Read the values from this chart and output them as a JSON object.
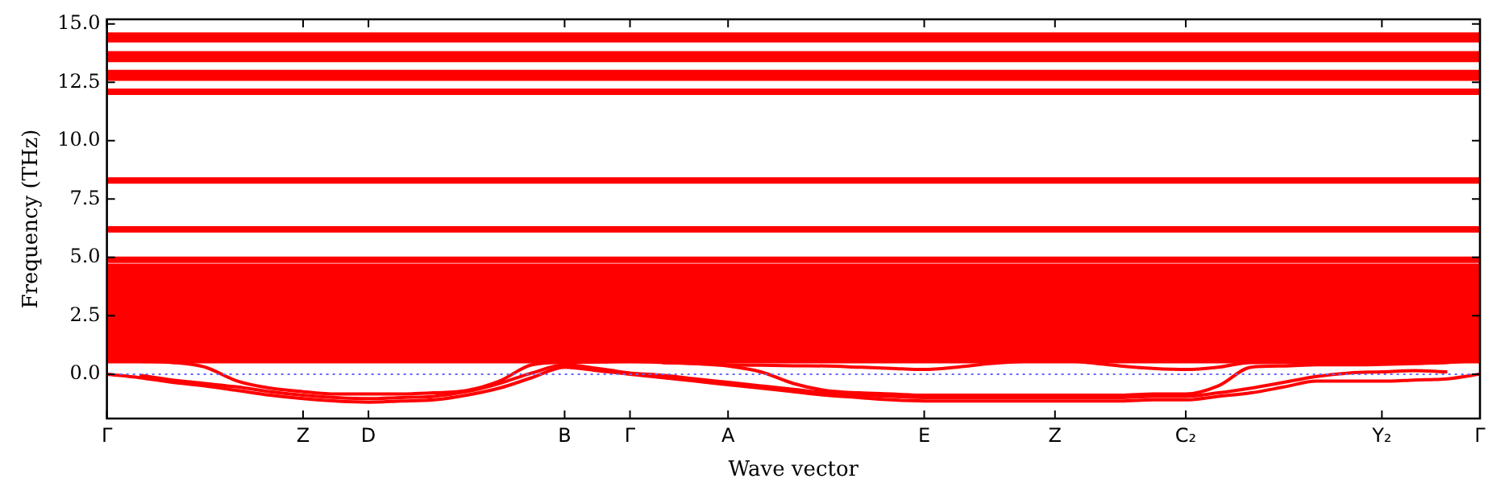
{
  "chart_data": {
    "type": "line",
    "xlabel": "Wave vector",
    "ylabel": "Frequency (THz)",
    "categories": [
      "Γ",
      null,
      null,
      null,
      null,
      null,
      "Z",
      null,
      "D",
      null,
      null,
      null,
      null,
      null,
      "B",
      null,
      "Γ",
      null,
      null,
      "A",
      null,
      null,
      null,
      null,
      null,
      "E",
      null,
      null,
      null,
      "Z",
      null,
      null,
      null,
      "C₂",
      null,
      null,
      null,
      null,
      null,
      "Y₂",
      null,
      null,
      "Γ"
    ],
    "ylim": [
      -1.9,
      15.2
    ],
    "yticks": [
      {
        "value": 0,
        "label": "0.0"
      },
      {
        "value": 2.5,
        "label": "2.5"
      },
      {
        "value": 5,
        "label": "5.0"
      },
      {
        "value": 7.5,
        "label": "7.5"
      },
      {
        "value": 10,
        "label": "10.0"
      },
      {
        "value": 12.5,
        "label": "12.5"
      },
      {
        "value": 15,
        "label": "15.0"
      }
    ],
    "grid": false,
    "legend": false,
    "marker": "none",
    "line_style": "solid",
    "ref_lines": [
      {
        "axis": "y",
        "value": 0,
        "color": "#6666ff",
        "line_style": "dotted"
      }
    ],
    "series": [
      {
        "color": "#ff0000",
        "values": [
          14.5,
          14.5,
          14.5,
          14.5,
          14.5,
          14.5,
          14.5,
          14.5,
          14.5,
          14.5,
          14.5,
          14.5,
          14.5,
          14.5,
          14.5,
          14.5,
          14.5,
          14.5,
          14.5,
          14.5,
          14.5,
          14.5,
          14.5,
          14.5,
          14.5,
          14.5,
          14.5,
          14.5,
          14.5,
          14.5,
          14.5,
          14.5,
          14.5,
          14.5,
          14.5,
          14.5,
          14.5,
          14.5,
          14.5,
          14.5,
          14.5,
          14.5,
          14.5
        ]
      },
      {
        "color": "#ff0000",
        "values": [
          14.35,
          14.35,
          14.35,
          14.35,
          14.35,
          14.35,
          14.35,
          14.35,
          14.35,
          14.35,
          14.35,
          14.35,
          14.35,
          14.35,
          14.35,
          14.35,
          14.35,
          14.35,
          14.35,
          14.35,
          14.35,
          14.35,
          14.35,
          14.35,
          14.35,
          14.35,
          14.35,
          14.35,
          14.35,
          14.35,
          14.35,
          14.35,
          14.35,
          14.35,
          14.35,
          14.35,
          14.35,
          14.35,
          14.35,
          14.35,
          14.35,
          14.35,
          14.35
        ]
      },
      {
        "color": "#ff0000",
        "values": [
          13.7,
          13.7,
          13.7,
          13.7,
          13.7,
          13.7,
          13.7,
          13.7,
          13.7,
          13.7,
          13.7,
          13.7,
          13.7,
          13.7,
          13.7,
          13.7,
          13.7,
          13.7,
          13.7,
          13.7,
          13.7,
          13.7,
          13.7,
          13.7,
          13.7,
          13.7,
          13.7,
          13.7,
          13.7,
          13.7,
          13.7,
          13.7,
          13.7,
          13.7,
          13.7,
          13.7,
          13.7,
          13.7,
          13.7,
          13.7,
          13.7,
          13.7,
          13.7
        ]
      },
      {
        "color": "#ff0000",
        "values": [
          13.5,
          13.5,
          13.5,
          13.5,
          13.5,
          13.5,
          13.5,
          13.5,
          13.5,
          13.5,
          13.5,
          13.5,
          13.5,
          13.5,
          13.5,
          13.5,
          13.5,
          13.5,
          13.5,
          13.5,
          13.5,
          13.5,
          13.5,
          13.5,
          13.5,
          13.5,
          13.5,
          13.5,
          13.5,
          13.5,
          13.5,
          13.5,
          13.5,
          13.5,
          13.5,
          13.5,
          13.5,
          13.5,
          13.5,
          13.5,
          13.5,
          13.5,
          13.5
        ]
      },
      {
        "color": "#ff0000",
        "values": [
          12.9,
          12.9,
          12.9,
          12.9,
          12.9,
          12.9,
          12.9,
          12.9,
          12.9,
          12.9,
          12.9,
          12.9,
          12.9,
          12.9,
          12.9,
          12.9,
          12.9,
          12.9,
          12.9,
          12.9,
          12.9,
          12.9,
          12.9,
          12.9,
          12.9,
          12.9,
          12.9,
          12.9,
          12.9,
          12.9,
          12.9,
          12.9,
          12.9,
          12.9,
          12.9,
          12.9,
          12.9,
          12.9,
          12.9,
          12.9,
          12.9,
          12.9,
          12.9
        ]
      },
      {
        "color": "#ff0000",
        "values": [
          12.7,
          12.7,
          12.7,
          12.7,
          12.7,
          12.7,
          12.7,
          12.7,
          12.7,
          12.7,
          12.7,
          12.7,
          12.7,
          12.7,
          12.7,
          12.7,
          12.7,
          12.7,
          12.7,
          12.7,
          12.7,
          12.7,
          12.7,
          12.7,
          12.7,
          12.7,
          12.7,
          12.7,
          12.7,
          12.7,
          12.7,
          12.7,
          12.7,
          12.7,
          12.7,
          12.7,
          12.7,
          12.7,
          12.7,
          12.7,
          12.7,
          12.7,
          12.7
        ]
      },
      {
        "color": "#ff0000",
        "values": [
          12.1,
          12.1,
          12.1,
          12.1,
          12.1,
          12.1,
          12.1,
          12.1,
          12.1,
          12.1,
          12.1,
          12.1,
          12.1,
          12.1,
          12.1,
          12.1,
          12.1,
          12.1,
          12.1,
          12.1,
          12.1,
          12.1,
          12.1,
          12.1,
          12.1,
          12.1,
          12.1,
          12.1,
          12.1,
          12.1,
          12.1,
          12.1,
          12.1,
          12.1,
          12.1,
          12.1,
          12.1,
          12.1,
          12.1,
          12.1,
          12.1,
          12.1,
          12.1
        ]
      },
      {
        "color": "#ff0000",
        "values": [
          8.3,
          8.3,
          8.3,
          8.3,
          8.3,
          8.3,
          8.3,
          8.3,
          8.3,
          8.3,
          8.3,
          8.3,
          8.3,
          8.3,
          8.3,
          8.3,
          8.3,
          8.3,
          8.3,
          8.3,
          8.3,
          8.3,
          8.3,
          8.3,
          8.3,
          8.3,
          8.3,
          8.3,
          8.3,
          8.3,
          8.3,
          8.3,
          8.3,
          8.3,
          8.3,
          8.3,
          8.3,
          8.3,
          8.3,
          8.3,
          8.3,
          8.3,
          8.3
        ]
      },
      {
        "color": "#ff0000",
        "values": [
          6.2,
          6.2,
          6.2,
          6.2,
          6.2,
          6.2,
          6.2,
          6.2,
          6.2,
          6.2,
          6.2,
          6.2,
          6.2,
          6.2,
          6.2,
          6.2,
          6.2,
          6.2,
          6.2,
          6.2,
          6.2,
          6.2,
          6.2,
          6.2,
          6.2,
          6.2,
          6.2,
          6.2,
          6.2,
          6.2,
          6.2,
          6.2,
          6.2,
          6.2,
          6.2,
          6.2,
          6.2,
          6.2,
          6.2,
          6.2,
          6.2,
          6.2,
          6.2
        ]
      },
      {
        "color": "#ff0000",
        "values": [
          4.9,
          4.9,
          4.9,
          4.9,
          4.9,
          4.9,
          4.9,
          4.9,
          4.9,
          4.9,
          4.9,
          4.9,
          4.9,
          4.9,
          4.9,
          4.9,
          4.9,
          4.9,
          4.9,
          4.9,
          4.9,
          4.9,
          4.9,
          4.9,
          4.9,
          4.9,
          4.9,
          4.9,
          4.9,
          4.9,
          4.9,
          4.9,
          4.9,
          4.9,
          4.9,
          4.9,
          4.9,
          4.9,
          4.9,
          4.9,
          4.9,
          4.9,
          4.9
        ]
      },
      {
        "color": "#ff0000",
        "values": [
          4.6,
          4.6,
          4.6,
          4.6,
          4.6,
          4.6,
          4.6,
          4.6,
          4.6,
          4.6,
          4.6,
          4.6,
          4.6,
          4.6,
          4.6,
          4.6,
          4.6,
          4.6,
          4.6,
          4.6,
          4.6,
          4.6,
          4.6,
          4.6,
          4.6,
          4.6,
          4.6,
          4.6,
          4.6,
          4.6,
          4.6,
          4.6,
          4.6,
          4.6,
          4.6,
          4.6,
          4.6,
          4.6,
          4.6,
          4.6,
          4.6,
          4.6,
          4.6
        ]
      },
      {
        "color": "#ff0000",
        "values": [
          4.35,
          4.35,
          4.35,
          4.35,
          4.35,
          4.35,
          4.35,
          4.35,
          4.35,
          4.35,
          4.35,
          4.35,
          4.35,
          4.35,
          4.35,
          4.35,
          4.35,
          4.35,
          4.35,
          4.35,
          4.35,
          4.35,
          4.35,
          4.35,
          4.35,
          4.35,
          4.35,
          4.35,
          4.35,
          4.35,
          4.35,
          4.35,
          4.35,
          4.35,
          4.35,
          4.35,
          4.35,
          4.35,
          4.35,
          4.35,
          4.35,
          4.35,
          4.35
        ]
      },
      {
        "color": "#ff0000",
        "values": [
          4.1,
          4.1,
          4.1,
          4.1,
          4.1,
          4.1,
          4.1,
          4.1,
          4.1,
          4.1,
          4.1,
          4.1,
          4.1,
          4.1,
          4.1,
          4.1,
          4.1,
          4.1,
          4.1,
          4.1,
          4.1,
          4.1,
          4.1,
          4.1,
          4.1,
          4.1,
          4.1,
          4.1,
          4.1,
          4.1,
          4.1,
          4.1,
          4.1,
          4.1,
          4.1,
          4.1,
          4.1,
          4.1,
          4.1,
          4.1,
          4.1,
          4.1,
          4.1
        ]
      },
      {
        "color": "#ff0000",
        "values": [
          3.85,
          3.85,
          3.85,
          3.85,
          3.85,
          3.85,
          3.85,
          3.85,
          3.85,
          3.85,
          3.85,
          3.85,
          3.85,
          3.85,
          3.85,
          3.85,
          3.85,
          3.85,
          3.85,
          3.85,
          3.85,
          3.85,
          3.85,
          3.85,
          3.85,
          3.85,
          3.85,
          3.85,
          3.85,
          3.85,
          3.85,
          3.85,
          3.85,
          3.85,
          3.85,
          3.85,
          3.85,
          3.85,
          3.85,
          3.85,
          3.85,
          3.85,
          3.85
        ]
      },
      {
        "color": "#ff0000",
        "values": [
          3.6,
          3.6,
          3.6,
          3.6,
          3.6,
          3.6,
          3.6,
          3.6,
          3.6,
          3.6,
          3.6,
          3.6,
          3.6,
          3.6,
          3.6,
          3.6,
          3.6,
          3.6,
          3.6,
          3.6,
          3.6,
          3.6,
          3.6,
          3.6,
          3.6,
          3.6,
          3.6,
          3.6,
          3.6,
          3.6,
          3.6,
          3.6,
          3.6,
          3.6,
          3.6,
          3.6,
          3.6,
          3.6,
          3.6,
          3.6,
          3.6,
          3.6,
          3.6
        ]
      },
      {
        "color": "#ff0000",
        "values": [
          3.35,
          3.35,
          3.35,
          3.35,
          3.35,
          3.35,
          3.35,
          3.35,
          3.35,
          3.35,
          3.35,
          3.35,
          3.35,
          3.35,
          3.35,
          3.35,
          3.35,
          3.35,
          3.35,
          3.35,
          3.35,
          3.35,
          3.35,
          3.35,
          3.35,
          3.35,
          3.35,
          3.35,
          3.35,
          3.35,
          3.35,
          3.35,
          3.35,
          3.35,
          3.35,
          3.35,
          3.35,
          3.35,
          3.35,
          3.35,
          3.35,
          3.35,
          3.35
        ]
      },
      {
        "color": "#ff0000",
        "values": [
          3.1,
          3.1,
          3.1,
          3.1,
          3.1,
          3.1,
          3.1,
          3.1,
          3.1,
          3.1,
          3.1,
          3.1,
          3.1,
          3.1,
          3.1,
          3.1,
          3.1,
          3.1,
          3.1,
          3.1,
          3.1,
          3.1,
          3.1,
          3.1,
          3.1,
          3.1,
          3.1,
          3.1,
          3.1,
          3.1,
          3.1,
          3.1,
          3.1,
          3.1,
          3.1,
          3.1,
          3.1,
          3.1,
          3.1,
          3.1,
          3.1,
          3.1,
          3.1
        ]
      },
      {
        "color": "#ff0000",
        "values": [
          2.85,
          2.85,
          2.85,
          2.85,
          2.85,
          2.85,
          2.85,
          2.85,
          2.85,
          2.85,
          2.85,
          2.85,
          2.85,
          2.85,
          2.85,
          2.85,
          2.85,
          2.85,
          2.85,
          2.85,
          2.85,
          2.85,
          2.85,
          2.85,
          2.85,
          2.85,
          2.85,
          2.85,
          2.85,
          2.85,
          2.85,
          2.85,
          2.85,
          2.85,
          2.85,
          2.85,
          2.85,
          2.85,
          2.85,
          2.85,
          2.85,
          2.85,
          2.85
        ]
      },
      {
        "color": "#ff0000",
        "values": [
          2.6,
          2.6,
          2.6,
          2.6,
          2.6,
          2.6,
          2.6,
          2.6,
          2.6,
          2.6,
          2.6,
          2.6,
          2.6,
          2.6,
          2.6,
          2.6,
          2.6,
          2.6,
          2.6,
          2.6,
          2.6,
          2.6,
          2.6,
          2.6,
          2.6,
          2.6,
          2.6,
          2.6,
          2.6,
          2.6,
          2.6,
          2.6,
          2.6,
          2.6,
          2.6,
          2.6,
          2.6,
          2.6,
          2.6,
          2.6,
          2.6,
          2.6,
          2.6
        ]
      },
      {
        "color": "#ff0000",
        "values": [
          2.35,
          2.35,
          2.35,
          2.35,
          2.35,
          2.35,
          2.35,
          2.35,
          2.35,
          2.35,
          2.35,
          2.35,
          2.35,
          2.35,
          2.35,
          2.35,
          2.35,
          2.35,
          2.35,
          2.35,
          2.35,
          2.35,
          2.35,
          2.35,
          2.35,
          2.35,
          2.35,
          2.35,
          2.35,
          2.35,
          2.35,
          2.35,
          2.35,
          2.35,
          2.35,
          2.35,
          2.35,
          2.35,
          2.35,
          2.35,
          2.35,
          2.35,
          2.35
        ]
      },
      {
        "color": "#ff0000",
        "values": [
          2.1,
          2.1,
          2.1,
          2.1,
          2.1,
          2.1,
          2.1,
          2.1,
          2.1,
          2.1,
          2.1,
          2.1,
          2.1,
          2.1,
          2.1,
          2.1,
          2.1,
          2.1,
          2.1,
          2.1,
          2.1,
          2.1,
          2.1,
          2.1,
          2.1,
          2.1,
          2.1,
          2.1,
          2.1,
          2.1,
          2.1,
          2.1,
          2.1,
          2.1,
          2.1,
          2.1,
          2.1,
          2.1,
          2.1,
          2.1,
          2.1,
          2.1,
          2.1
        ]
      },
      {
        "color": "#ff0000",
        "values": [
          1.85,
          1.85,
          1.85,
          1.85,
          1.85,
          1.85,
          1.85,
          1.85,
          1.85,
          1.85,
          1.85,
          1.85,
          1.85,
          1.85,
          1.85,
          1.85,
          1.85,
          1.85,
          1.85,
          1.85,
          1.85,
          1.85,
          1.85,
          1.85,
          1.85,
          1.85,
          1.85,
          1.85,
          1.85,
          1.85,
          1.85,
          1.85,
          1.85,
          1.85,
          1.85,
          1.85,
          1.85,
          1.85,
          1.85,
          1.85,
          1.85,
          1.85,
          1.85
        ]
      },
      {
        "color": "#ff0000",
        "values": [
          1.6,
          1.6,
          1.6,
          1.6,
          1.6,
          1.6,
          1.6,
          1.6,
          1.6,
          1.6,
          1.6,
          1.6,
          1.6,
          1.6,
          1.6,
          1.6,
          1.6,
          1.6,
          1.6,
          1.6,
          1.6,
          1.6,
          1.6,
          1.6,
          1.6,
          1.6,
          1.6,
          1.6,
          1.6,
          1.6,
          1.6,
          1.6,
          1.6,
          1.6,
          1.6,
          1.6,
          1.6,
          1.6,
          1.6,
          1.6,
          1.6,
          1.6,
          1.6
        ]
      },
      {
        "color": "#ff0000",
        "values": [
          1.35,
          1.35,
          1.35,
          1.35,
          1.35,
          1.35,
          1.35,
          1.35,
          1.35,
          1.35,
          1.35,
          1.35,
          1.35,
          1.35,
          1.35,
          1.35,
          1.35,
          1.35,
          1.35,
          1.35,
          1.35,
          1.35,
          1.35,
          1.35,
          1.35,
          1.35,
          1.35,
          1.35,
          1.35,
          1.35,
          1.35,
          1.35,
          1.35,
          1.35,
          1.35,
          1.35,
          1.35,
          1.35,
          1.35,
          1.35,
          1.35,
          1.35,
          1.35
        ]
      },
      {
        "color": "#ff0000",
        "values": [
          1.1,
          1.1,
          1.1,
          1.1,
          1.1,
          1.1,
          1.1,
          1.1,
          1.1,
          1.1,
          1.1,
          1.1,
          1.1,
          1.1,
          1.1,
          1.1,
          1.1,
          1.1,
          1.1,
          1.1,
          1.1,
          1.1,
          1.1,
          1.1,
          1.1,
          1.1,
          1.1,
          1.1,
          1.1,
          1.1,
          1.1,
          1.1,
          1.1,
          1.1,
          1.1,
          1.1,
          1.1,
          1.1,
          1.1,
          1.1,
          1.1,
          1.1,
          1.1
        ]
      },
      {
        "color": "#ff0000",
        "values": [
          0.85,
          0.85,
          0.85,
          0.85,
          0.85,
          0.85,
          0.85,
          0.85,
          0.85,
          0.85,
          0.85,
          0.85,
          0.85,
          0.85,
          0.85,
          0.85,
          0.85,
          0.85,
          0.85,
          0.85,
          0.85,
          0.85,
          0.85,
          0.85,
          0.85,
          0.85,
          0.85,
          0.85,
          0.85,
          0.85,
          0.85,
          0.85,
          0.85,
          0.85,
          0.85,
          0.85,
          0.85,
          0.85,
          0.85,
          0.85,
          0.85,
          0.85,
          0.85
        ]
      },
      {
        "color": "#ff0000",
        "values": [
          0.6,
          0.6,
          0.6,
          0.6,
          0.6,
          0.6,
          0.6,
          0.6,
          0.6,
          0.6,
          0.6,
          0.6,
          0.6,
          0.6,
          0.6,
          0.6,
          0.6,
          0.6,
          0.6,
          0.6,
          0.6,
          0.6,
          0.6,
          0.6,
          0.6,
          0.6,
          0.6,
          0.6,
          0.6,
          0.6,
          0.6,
          0.6,
          0.6,
          0.6,
          0.6,
          0.6,
          0.6,
          0.6,
          0.6,
          0.6,
          0.6,
          0.6,
          0.6
        ]
      },
      {
        "color": "#ff0000",
        "values": [
          0,
          -0.15,
          -0.35,
          -0.5,
          -0.7,
          -0.9,
          -1.05,
          -1.15,
          -1.2,
          -1.15,
          -1.1,
          -0.9,
          -0.6,
          -0.15,
          0.3,
          0.15,
          0,
          -0.15,
          -0.3,
          -0.45,
          -0.6,
          -0.75,
          -0.9,
          -1.0,
          -1.1,
          -1.15,
          -1.15,
          -1.15,
          -1.15,
          -1.15,
          -1.15,
          -1.15,
          -1.1,
          -1.1,
          -0.95,
          -0.8,
          -0.55,
          -0.3,
          -0.3,
          -0.3,
          -0.25,
          -0.2,
          0
        ]
      },
      {
        "color": "#ff0000",
        "values": [
          null,
          -0.05,
          -0.25,
          -0.4,
          -0.55,
          -0.75,
          -0.9,
          -1.0,
          -1.05,
          -1.0,
          -0.95,
          -0.75,
          -0.4,
          0.05,
          0.4,
          0.25,
          0.05,
          -0.05,
          -0.2,
          -0.35,
          -0.5,
          -0.65,
          -0.8,
          -0.9,
          -0.95,
          -1.0,
          -1.0,
          -1.0,
          -1.0,
          -1.0,
          -1.0,
          -1.0,
          -0.95,
          -0.95,
          -0.8,
          -0.6,
          -0.35,
          -0.1,
          0.05,
          0.1,
          0.15,
          0.1,
          null
        ]
      },
      {
        "color": "#ff0000",
        "values": [
          0.6,
          0.55,
          0.5,
          0.3,
          -0.3,
          -0.6,
          -0.75,
          -0.85,
          -0.85,
          -0.85,
          -0.8,
          -0.7,
          -0.3,
          0.4,
          0.5,
          0.52,
          0.55,
          0.5,
          0.45,
          0.35,
          0.1,
          -0.4,
          -0.7,
          -0.8,
          -0.85,
          -0.9,
          -0.9,
          -0.9,
          -0.9,
          -0.9,
          -0.9,
          -0.9,
          -0.85,
          -0.85,
          -0.5,
          0.3,
          0.35,
          0.4,
          0.4,
          0.42,
          0.45,
          0.5,
          0.6
        ]
      },
      {
        "color": "#ff0000",
        "values": [
          null,
          null,
          null,
          null,
          null,
          null,
          null,
          null,
          null,
          null,
          null,
          null,
          null,
          null,
          null,
          null,
          null,
          0.5,
          0.45,
          0.4,
          0.38,
          0.36,
          0.35,
          0.3,
          0.25,
          0.2,
          0.3,
          0.45,
          0.55,
          0.6,
          0.5,
          0.35,
          0.25,
          0.2,
          0.3,
          0.5,
          0.5,
          0.45,
          0.45,
          0.5,
          0.55,
          0.6,
          null
        ]
      }
    ]
  }
}
